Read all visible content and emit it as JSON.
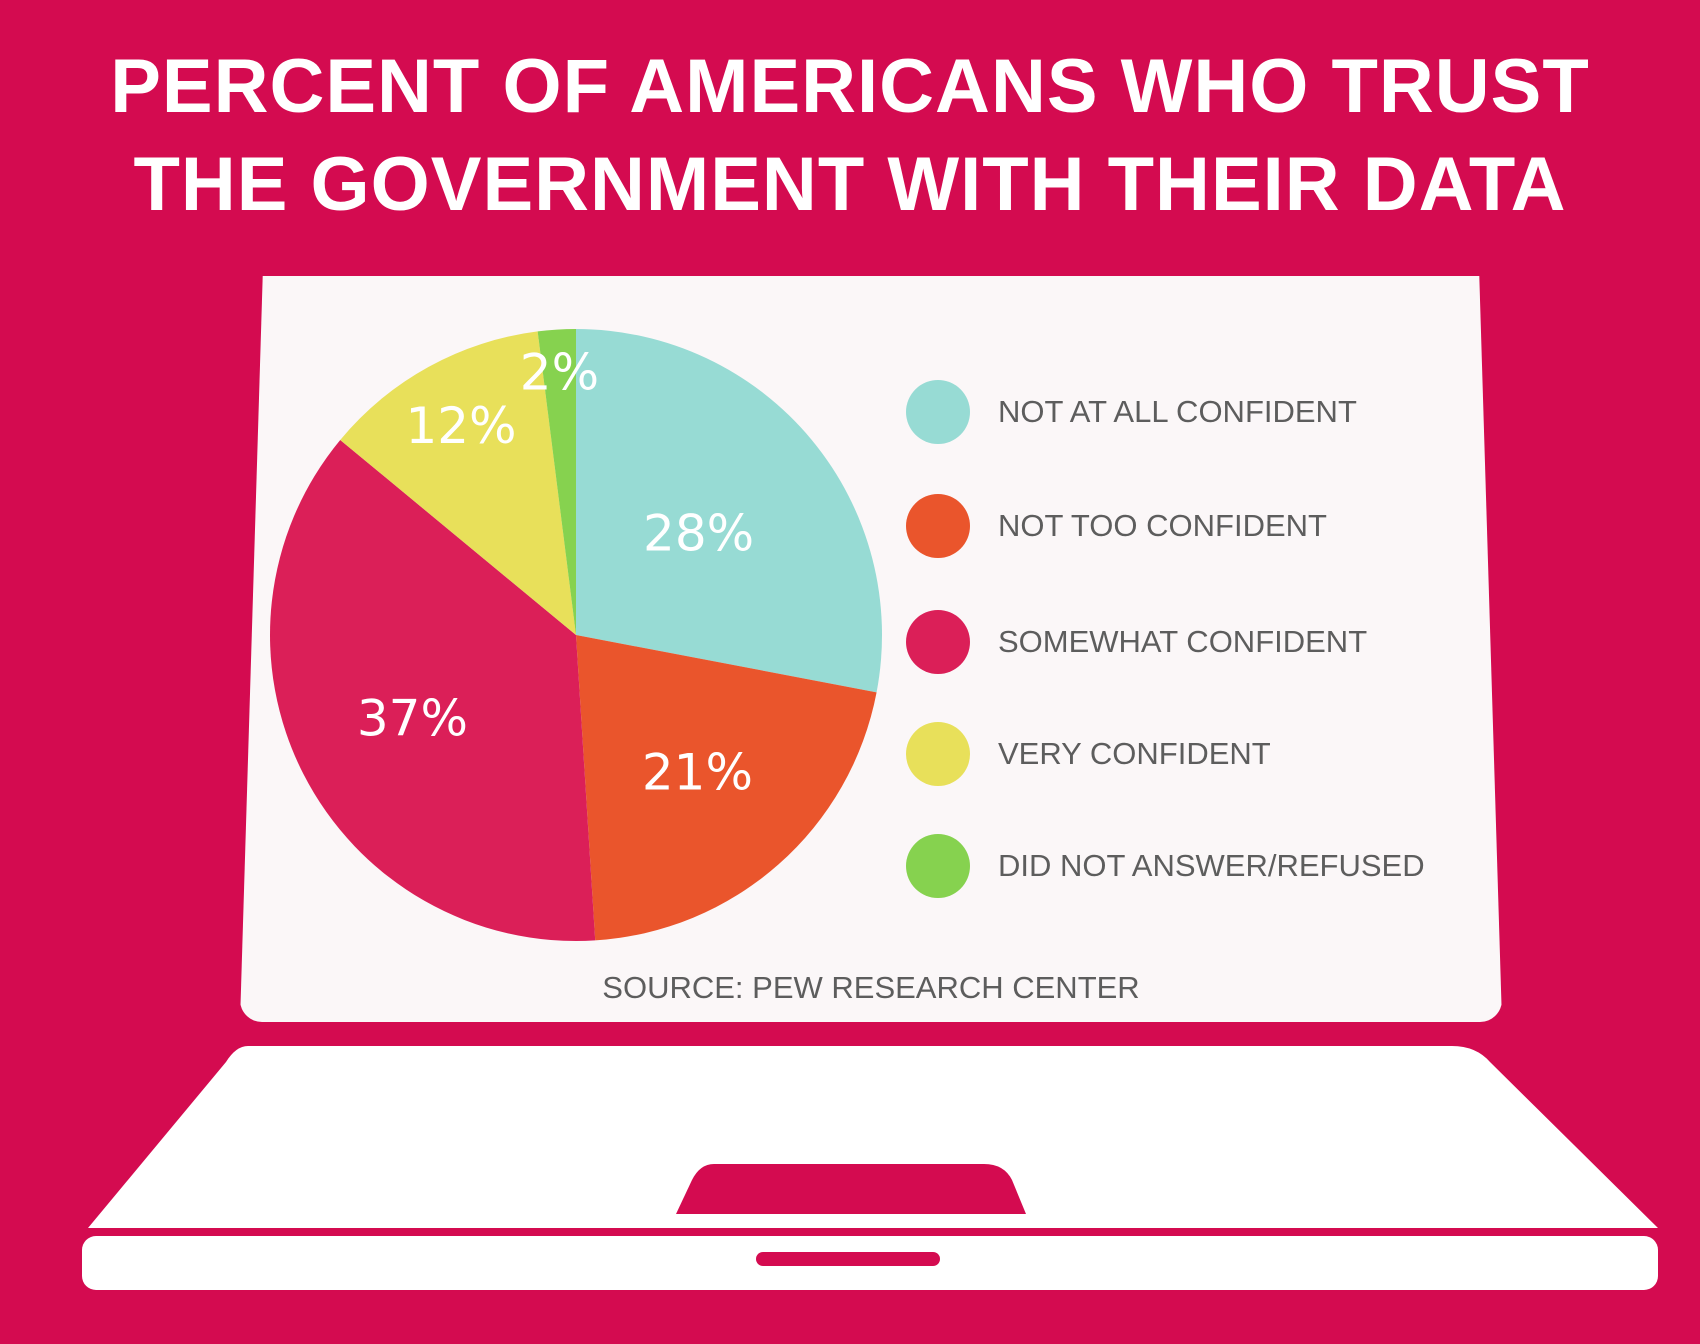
{
  "title_lines": [
    "PERCENT OF AMERICANS WHO TRUST",
    "THE GOVERNMENT WITH THEIR DATA"
  ],
  "source": "SOURCE: PEW RESEARCH CENTER",
  "chart_data": {
    "type": "pie",
    "title": "PERCENT OF AMERICANS WHO TRUST THE GOVERNMENT WITH THEIR DATA",
    "categories": [
      "NOT AT ALL CONFIDENT",
      "NOT TOO CONFIDENT",
      "SOMEWHAT CONFIDENT",
      "VERY CONFIDENT",
      "DID NOT ANSWER/REFUSED"
    ],
    "values": [
      28,
      21,
      37,
      12,
      2
    ],
    "labels": [
      "28%",
      "21%",
      "37%",
      "12%",
      "2%"
    ],
    "colors": [
      "#97dbd4",
      "#ea552c",
      "#db1f58",
      "#e8e05a",
      "#86d24f"
    ],
    "legend_position": "right"
  }
}
